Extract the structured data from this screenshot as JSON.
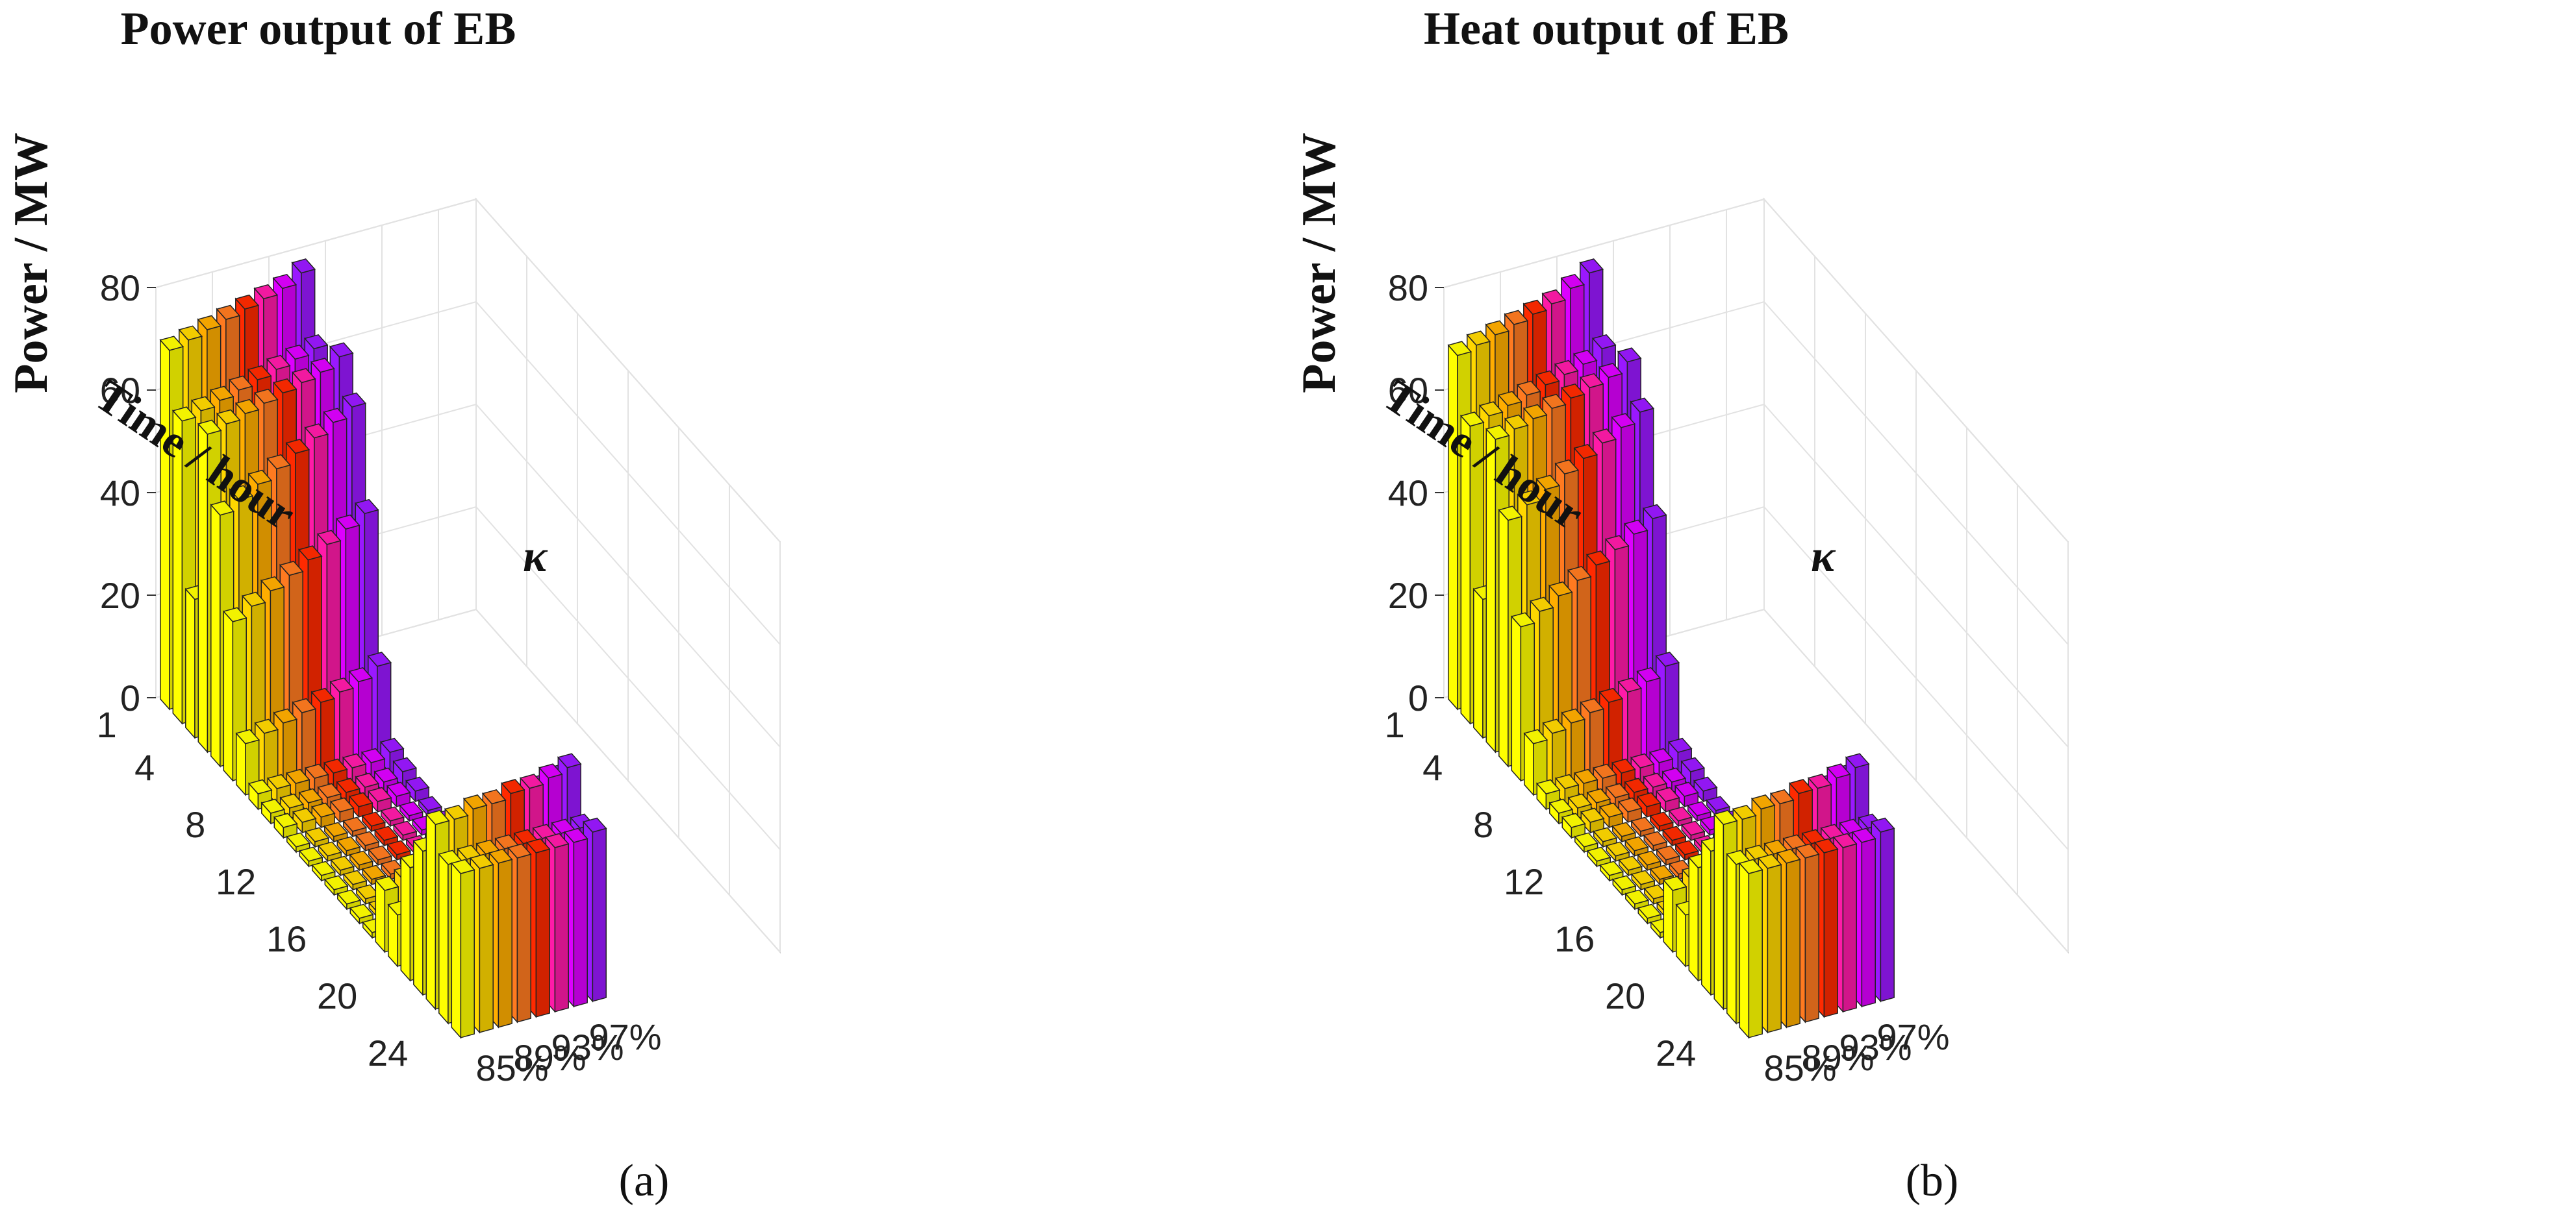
{
  "colors": {
    "85%": "#ffff00",
    "87%": "#ffd700",
    "89%": "#ffad00",
    "91%": "#ff7a20",
    "93%": "#ff2a00",
    "95%": "#ff1aa8",
    "97a": "#dd00ff",
    "97%": "#9a18ff"
  },
  "chart_data": [
    {
      "type": "bar3d",
      "panel_label": "(a)",
      "title": "Power output of EB",
      "ylabel": "Power / MW",
      "xlabel": "Time / hour",
      "klabel": "κ",
      "zlim": [
        0,
        80
      ],
      "z_ticks": [
        "0",
        "20",
        "40",
        "60",
        "80"
      ],
      "time_ticks": [
        "1",
        "4",
        "8",
        "12",
        "16",
        "20",
        "24"
      ],
      "kappa_ticks": [
        "85%",
        "89%",
        "93%",
        "97%"
      ],
      "kappa_series": [
        "85%",
        "87%",
        "89%",
        "91%",
        "93%",
        "95%",
        "97%",
        "97%"
      ],
      "times": [
        1,
        2,
        3,
        4,
        5,
        6,
        7,
        8,
        9,
        10,
        11,
        12,
        13,
        14,
        15,
        16,
        17,
        18,
        19,
        20,
        21,
        22,
        23,
        24
      ],
      "values": [
        [
          70,
          71,
          72,
          73,
          74,
          75,
          76,
          78
        ],
        [
          59,
          60,
          61,
          62,
          63,
          64,
          65,
          66
        ],
        [
          27,
          28,
          30,
          32,
          34,
          36,
          38,
          40
        ],
        [
          62,
          63,
          64,
          65,
          66,
          67,
          68,
          70
        ],
        [
          49,
          51,
          53,
          55,
          57,
          59,
          61,
          63
        ],
        [
          31,
          33,
          35,
          37,
          39,
          41,
          43,
          45
        ],
        [
          10,
          11,
          12,
          13,
          14,
          15,
          16,
          18
        ],
        [
          3,
          3,
          3,
          3,
          3,
          3,
          3,
          4
        ],
        [
          2,
          2,
          2,
          2,
          2,
          2,
          2,
          3
        ],
        [
          2,
          2,
          2,
          2,
          2,
          2,
          2,
          2
        ],
        [
          1,
          1,
          1,
          1,
          1,
          1,
          1,
          1
        ],
        [
          1,
          1,
          1,
          1,
          1,
          1,
          1,
          1
        ],
        [
          1,
          1,
          1,
          1,
          1,
          1,
          1,
          1
        ],
        [
          1,
          1,
          1,
          1,
          1,
          1,
          1,
          1
        ],
        [
          1,
          1,
          1,
          1,
          1,
          1,
          1,
          1
        ],
        [
          1,
          1,
          1,
          1,
          1,
          1,
          1,
          1
        ],
        [
          1,
          1,
          1,
          1,
          1,
          1,
          1,
          1
        ],
        [
          12,
          13,
          14,
          15,
          16,
          17,
          18,
          20
        ],
        [
          10,
          11,
          12,
          13,
          14,
          15,
          16,
          17
        ],
        [
          22,
          23,
          24,
          25,
          26,
          27,
          28,
          30
        ],
        [
          28,
          29,
          30,
          31,
          32,
          33,
          34,
          35
        ],
        [
          36,
          36,
          37,
          37,
          38,
          38,
          39,
          40
        ],
        [
          31,
          31,
          31,
          31,
          31,
          31,
          31,
          31
        ],
        [
          32,
          32,
          32,
          32,
          32,
          32,
          32,
          33
        ]
      ]
    },
    {
      "type": "bar3d",
      "panel_label": "(b)",
      "title": "Heat output of EB",
      "ylabel": "Power / MW",
      "xlabel": "Time / hour",
      "klabel": "κ",
      "zlim": [
        0,
        80
      ],
      "z_ticks": [
        "0",
        "20",
        "40",
        "60",
        "80"
      ],
      "time_ticks": [
        "1",
        "4",
        "8",
        "12",
        "16",
        "20",
        "24"
      ],
      "kappa_ticks": [
        "85%",
        "89%",
        "93%",
        "97%"
      ],
      "kappa_series": [
        "85%",
        "87%",
        "89%",
        "91%",
        "93%",
        "95%",
        "97%",
        "97%"
      ],
      "times": [
        1,
        2,
        3,
        4,
        5,
        6,
        7,
        8,
        9,
        10,
        11,
        12,
        13,
        14,
        15,
        16,
        17,
        18,
        19,
        20,
        21,
        22,
        23,
        24
      ],
      "values": [
        [
          69,
          70,
          71,
          72,
          73,
          74,
          76,
          78
        ],
        [
          58,
          59,
          60,
          61,
          62,
          63,
          64,
          66
        ],
        [
          27,
          28,
          30,
          32,
          34,
          36,
          38,
          40
        ],
        [
          61,
          62,
          63,
          64,
          65,
          66,
          67,
          69
        ],
        [
          48,
          50,
          52,
          54,
          56,
          58,
          60,
          62
        ],
        [
          30,
          32,
          34,
          36,
          38,
          40,
          42,
          44
        ],
        [
          10,
          11,
          12,
          13,
          14,
          15,
          16,
          18
        ],
        [
          3,
          3,
          3,
          3,
          3,
          3,
          3,
          4
        ],
        [
          2,
          2,
          2,
          2,
          2,
          2,
          2,
          3
        ],
        [
          2,
          2,
          2,
          2,
          2,
          2,
          2,
          2
        ],
        [
          1,
          1,
          1,
          1,
          1,
          1,
          1,
          1
        ],
        [
          1,
          1,
          1,
          1,
          1,
          1,
          1,
          1
        ],
        [
          1,
          1,
          1,
          1,
          1,
          1,
          1,
          1
        ],
        [
          1,
          1,
          1,
          1,
          1,
          1,
          1,
          1
        ],
        [
          1,
          1,
          1,
          1,
          1,
          1,
          1,
          1
        ],
        [
          1,
          1,
          1,
          1,
          1,
          1,
          1,
          1
        ],
        [
          1,
          1,
          1,
          1,
          1,
          1,
          1,
          1
        ],
        [
          12,
          13,
          14,
          15,
          16,
          17,
          18,
          20
        ],
        [
          10,
          11,
          12,
          13,
          14,
          15,
          16,
          17
        ],
        [
          22,
          23,
          24,
          25,
          26,
          27,
          28,
          30
        ],
        [
          28,
          29,
          30,
          31,
          32,
          33,
          34,
          35
        ],
        [
          36,
          36,
          37,
          37,
          38,
          38,
          39,
          40
        ],
        [
          31,
          31,
          31,
          31,
          31,
          31,
          31,
          31
        ],
        [
          32,
          32,
          32,
          32,
          32,
          32,
          32,
          33
        ]
      ]
    }
  ]
}
